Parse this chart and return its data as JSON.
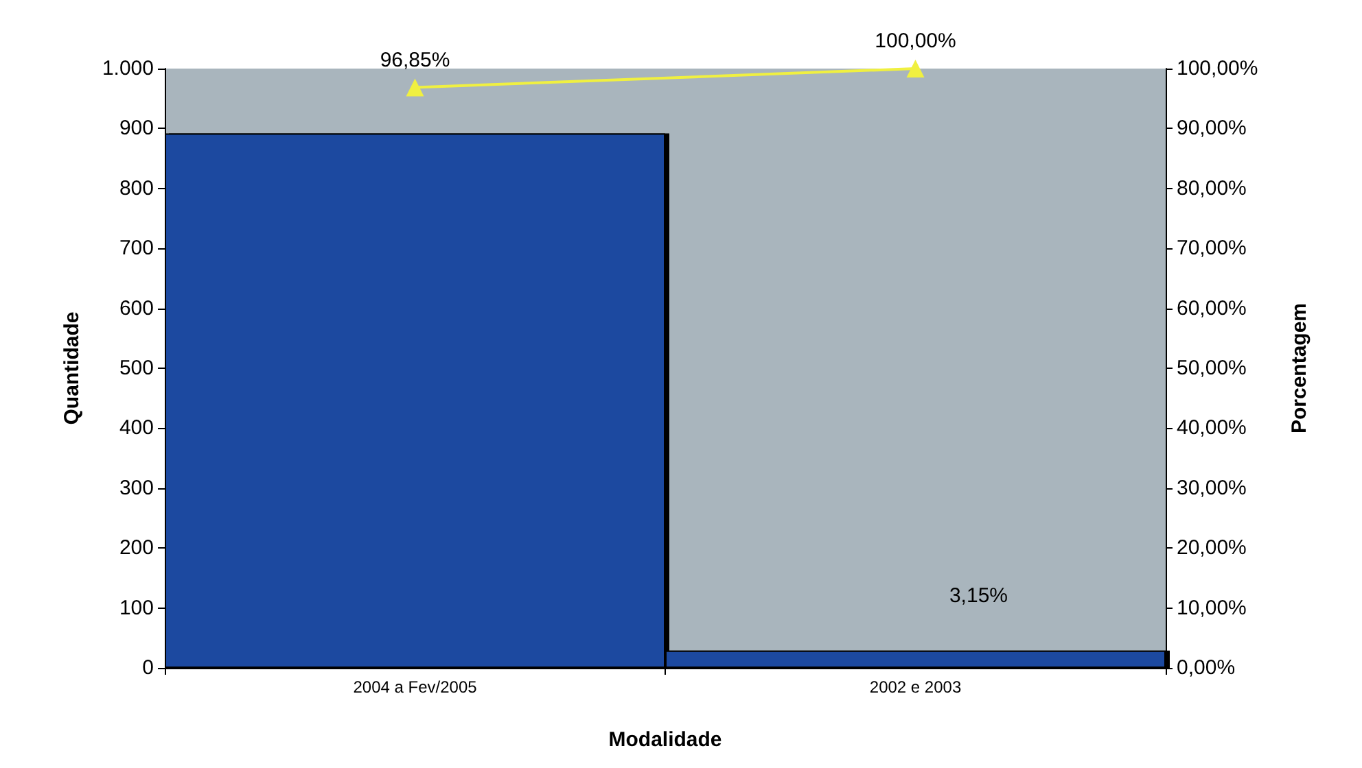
{
  "chart_data": {
    "type": "bar",
    "xlabel": "Modalidade",
    "ylabel": "Quantidade",
    "y2label": "Porcentagem",
    "categories": [
      "2004 a Fev/2005",
      "2002 e 2003"
    ],
    "series": [
      {
        "color": "#1f4aa0",
        "values": [
          892,
          29
        ]
      },
      {
        "type": "line",
        "axis": "y2",
        "color": "#f0f040",
        "marker": "triangle",
        "values": [
          96.85,
          100
        ],
        "value_labels": [
          "96,85%",
          "100,00%"
        ]
      }
    ],
    "ylim": [
      0,
      1000
    ],
    "yticks": [
      0,
      100,
      200,
      300,
      400,
      500,
      600,
      700,
      800,
      900,
      {
        "value": 1000,
        "label": "1.000"
      }
    ],
    "y2lim": [
      0,
      100
    ],
    "y2ticks": [
      {
        "value": 0,
        "label": "0,00%"
      },
      {
        "value": 10,
        "label": "10,00%"
      },
      {
        "value": 20,
        "label": "20,00%"
      },
      {
        "value": 30,
        "label": "30,00%"
      },
      {
        "value": 40,
        "label": "40,00%"
      },
      {
        "value": 50,
        "label": "50,00%"
      },
      {
        "value": 60,
        "label": "60,00%"
      },
      {
        "value": 70,
        "label": "70,00%"
      },
      {
        "value": 80,
        "label": "80,00%"
      },
      {
        "value": 90,
        "label": "90,00%"
      },
      {
        "value": 100,
        "label": "100,00%"
      }
    ],
    "annotations": [
      "3,15%"
    ],
    "grid": false
  }
}
